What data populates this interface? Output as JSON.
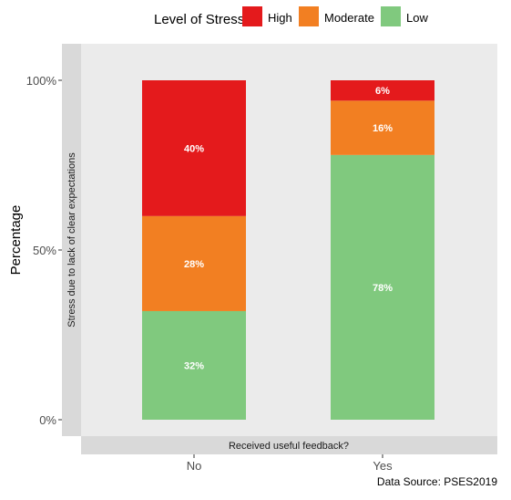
{
  "chart_data": {
    "type": "bar",
    "stacked": true,
    "orientation": "vertical",
    "categories": [
      "No",
      "Yes"
    ],
    "series": [
      {
        "name": "Low",
        "values": [
          32,
          78
        ],
        "labels": [
          "32%",
          "78%"
        ],
        "color": "#80c97e"
      },
      {
        "name": "Moderate",
        "values": [
          28,
          16
        ],
        "labels": [
          "28%",
          "16%"
        ],
        "color": "#f27f22"
      },
      {
        "name": "High",
        "values": [
          40,
          6
        ],
        "labels": [
          "40%",
          "6%"
        ],
        "color": "#e41a1c"
      }
    ],
    "legend": {
      "title": "Level of Stress",
      "placement": "top",
      "entries": [
        "High",
        "Moderate",
        "Low"
      ]
    },
    "ylabel": "Percentage",
    "facet_strip_left": "Stress due to lack of clear expectations",
    "facet_strip_bottom": "Received useful feedback?",
    "caption": "Data Source: PSES2019",
    "ylim": [
      0,
      100
    ],
    "yticks": [
      0,
      50,
      100
    ],
    "ytick_labels": [
      "0%",
      "50%",
      "100%"
    ],
    "grid": false,
    "colors": {
      "panel_background": "#ebebeb",
      "strip_background": "#d9d9d9",
      "data_label": "#ffffff"
    }
  }
}
